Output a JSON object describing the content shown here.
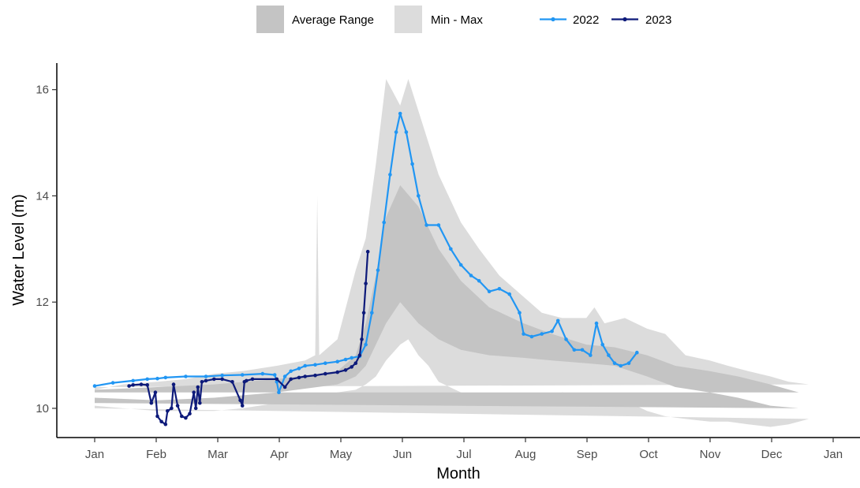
{
  "chart_data": {
    "type": "line",
    "title": "",
    "xlabel": "Month",
    "ylabel": "Water Level (m)",
    "xlim": [
      "Jan 1",
      "Jan 1 (next year)"
    ],
    "ylim": [
      9.45,
      16.5
    ],
    "grid": false,
    "legend_position": "top",
    "x_ticks": [
      "Jan",
      "Feb",
      "Mar",
      "Apr",
      "May",
      "Jun",
      "Jul",
      "Aug",
      "Sep",
      "Oct",
      "Nov",
      "Dec",
      "Jan"
    ],
    "y_ticks": [
      10,
      12,
      14,
      16
    ],
    "legend": [
      {
        "label": "Average Range",
        "kind": "band",
        "color": "#c4c4c4"
      },
      {
        "label": "Min - Max",
        "kind": "band",
        "color": "#dcdcdc"
      },
      {
        "label": "2022",
        "kind": "line",
        "color": "#2196f3"
      },
      {
        "label": "2023",
        "kind": "line",
        "color": "#0d1a7a"
      }
    ],
    "bands": [
      {
        "name": "Min - Max",
        "color": "#dcdcdc",
        "x": [
          "Jan 1",
          "Jan 15",
          "Feb 1",
          "Feb 15",
          "Mar 1",
          "Mar 15",
          "Apr 1",
          "Apr 15",
          "Apr 20",
          "Apr 21",
          "Apr 22",
          "May 1",
          "May 10",
          "May 15",
          "May 20",
          "May 25",
          "Jun 1",
          "Jun 5",
          "Jun 10",
          "Jun 15",
          "Jun 20",
          "Jul 1",
          "Jul 10",
          "Jul 20",
          "Aug 1",
          "Aug 10",
          "Aug 20",
          "Sep 1",
          "Sep 5",
          "Sep 10",
          "Sep 20",
          "Oct 1",
          "Oct 10",
          "Oct 20",
          "Nov 1",
          "Nov 10",
          "Nov 20",
          "Dec 1",
          "Dec 10",
          "Dec 20",
          "Jan 1"
        ],
        "lower": [
          10.05,
          10.0,
          9.95,
          9.95,
          9.95,
          10.0,
          10.1,
          10.2,
          10.2,
          10.2,
          10.2,
          10.3,
          10.35,
          10.45,
          10.6,
          10.9,
          11.2,
          11.3,
          11.0,
          10.8,
          10.5,
          10.3,
          10.2,
          10.2,
          10.15,
          10.2,
          10.3,
          10.25,
          10.25,
          10.2,
          10.15,
          9.95,
          9.85,
          9.8,
          9.75,
          9.75,
          9.7,
          9.65,
          9.7,
          9.8,
          10.0
        ],
        "upper": [
          10.35,
          10.45,
          10.5,
          10.55,
          10.65,
          10.7,
          10.8,
          10.9,
          11.0,
          14.0,
          11.0,
          11.3,
          12.6,
          13.2,
          14.6,
          16.2,
          15.7,
          16.2,
          15.6,
          15.0,
          14.4,
          13.5,
          13.0,
          12.5,
          12.1,
          11.8,
          11.7,
          11.7,
          11.9,
          11.6,
          11.7,
          11.5,
          11.4,
          11.0,
          10.9,
          10.8,
          10.7,
          10.6,
          10.5,
          10.45,
          10.4
        ]
      },
      {
        "name": "Average Range",
        "color": "#c4c4c4",
        "x": [
          "Jan 1",
          "Feb 1",
          "Mar 1",
          "Apr 1",
          "May 1",
          "May 10",
          "May 15",
          "May 20",
          "May 25",
          "Jun 1",
          "Jun 10",
          "Jun 20",
          "Jul 1",
          "Jul 15",
          "Aug 1",
          "Aug 15",
          "Sep 1",
          "Sep 15",
          "Oct 1",
          "Oct 15",
          "Nov 1",
          "Nov 15",
          "Dec 1",
          "Dec 15",
          "Jan 1"
        ],
        "lower": [
          10.2,
          10.15,
          10.2,
          10.3,
          10.45,
          10.6,
          10.8,
          11.2,
          11.6,
          12.0,
          11.6,
          11.3,
          11.1,
          11.0,
          10.95,
          10.9,
          10.85,
          10.8,
          10.6,
          10.4,
          10.3,
          10.2,
          10.05,
          10.0,
          10.1
        ],
        "upper": [
          10.35,
          10.4,
          10.45,
          10.55,
          10.7,
          11.0,
          11.6,
          12.5,
          13.6,
          14.2,
          13.8,
          13.0,
          12.4,
          11.9,
          11.6,
          11.4,
          11.2,
          11.15,
          11.0,
          10.8,
          10.7,
          10.6,
          10.45,
          10.3,
          10.3
        ]
      }
    ],
    "series": [
      {
        "name": "2022",
        "color": "#2196f3",
        "x": [
          "Jan 1",
          "Jan 10",
          "Jan 20",
          "Jan 27",
          "Feb 1",
          "Feb 5",
          "Feb 15",
          "Feb 25",
          "Mar 5",
          "Mar 15",
          "Mar 25",
          "Mar 31",
          "Apr 1",
          "Apr 2",
          "Apr 5",
          "Apr 8",
          "Apr 12",
          "Apr 15",
          "Apr 20",
          "Apr 25",
          "May 1",
          "May 5",
          "May 8",
          "May 12",
          "May 15",
          "May 18",
          "May 21",
          "May 24",
          "May 27",
          "May 30",
          "Jun 1",
          "Jun 4",
          "Jun 7",
          "Jun 10",
          "Jun 14",
          "Jun 20",
          "Jun 26",
          "Jul 1",
          "Jul 6",
          "Jul 10",
          "Jul 15",
          "Jul 20",
          "Jul 25",
          "Jul 30",
          "Aug 1",
          "Aug 5",
          "Aug 10",
          "Aug 15",
          "Aug 18",
          "Aug 22",
          "Aug 26",
          "Aug 30",
          "Sep 3",
          "Sep 6",
          "Sep 9",
          "Sep 12",
          "Sep 15",
          "Sep 18",
          "Sep 22",
          "Sep 26"
        ],
        "y": [
          10.42,
          10.48,
          10.52,
          10.55,
          10.56,
          10.58,
          10.6,
          10.6,
          10.62,
          10.63,
          10.65,
          10.63,
          10.5,
          10.3,
          10.6,
          10.7,
          10.75,
          10.8,
          10.82,
          10.85,
          10.88,
          10.92,
          10.95,
          10.98,
          11.2,
          11.8,
          12.6,
          13.5,
          14.4,
          15.2,
          15.55,
          15.2,
          14.6,
          14.0,
          13.45,
          13.45,
          13.0,
          12.7,
          12.5,
          12.4,
          12.2,
          12.25,
          12.15,
          11.8,
          11.4,
          11.35,
          11.4,
          11.45,
          11.65,
          11.3,
          11.1,
          11.1,
          11.0,
          11.6,
          11.2,
          11.0,
          10.85,
          10.8,
          10.85,
          11.05
        ]
      },
      {
        "name": "2023",
        "color": "#0d1a7a",
        "x": [
          "Jan 18",
          "Jan 20",
          "Jan 24",
          "Jan 27",
          "Jan 29",
          "Jan 31",
          "Feb 1",
          "Feb 3",
          "Feb 5",
          "Feb 6",
          "Feb 8",
          "Feb 9",
          "Feb 11",
          "Feb 13",
          "Feb 15",
          "Feb 17",
          "Feb 19",
          "Feb 20",
          "Feb 21",
          "Feb 22",
          "Feb 23",
          "Feb 25",
          "Mar 1",
          "Mar 5",
          "Mar 10",
          "Mar 14",
          "Mar 15",
          "Mar 16",
          "Mar 17",
          "Mar 20",
          "Apr 1",
          "Apr 5",
          "Apr 8",
          "Apr 12",
          "Apr 15",
          "Apr 20",
          "Apr 25",
          "May 1",
          "May 5",
          "May 8",
          "May 10",
          "May 12",
          "May 13",
          "May 14",
          "May 15",
          "May 16"
        ],
        "y": [
          10.42,
          10.44,
          10.45,
          10.44,
          10.1,
          10.3,
          9.85,
          9.75,
          9.7,
          9.95,
          10.0,
          10.45,
          10.05,
          9.85,
          9.82,
          9.9,
          10.3,
          10.0,
          10.4,
          10.1,
          10.5,
          10.52,
          10.55,
          10.55,
          10.5,
          10.15,
          10.05,
          10.5,
          10.52,
          10.55,
          10.55,
          10.4,
          10.55,
          10.58,
          10.6,
          10.62,
          10.65,
          10.68,
          10.72,
          10.78,
          10.85,
          11.0,
          11.3,
          11.8,
          12.35,
          12.95
        ]
      }
    ]
  }
}
